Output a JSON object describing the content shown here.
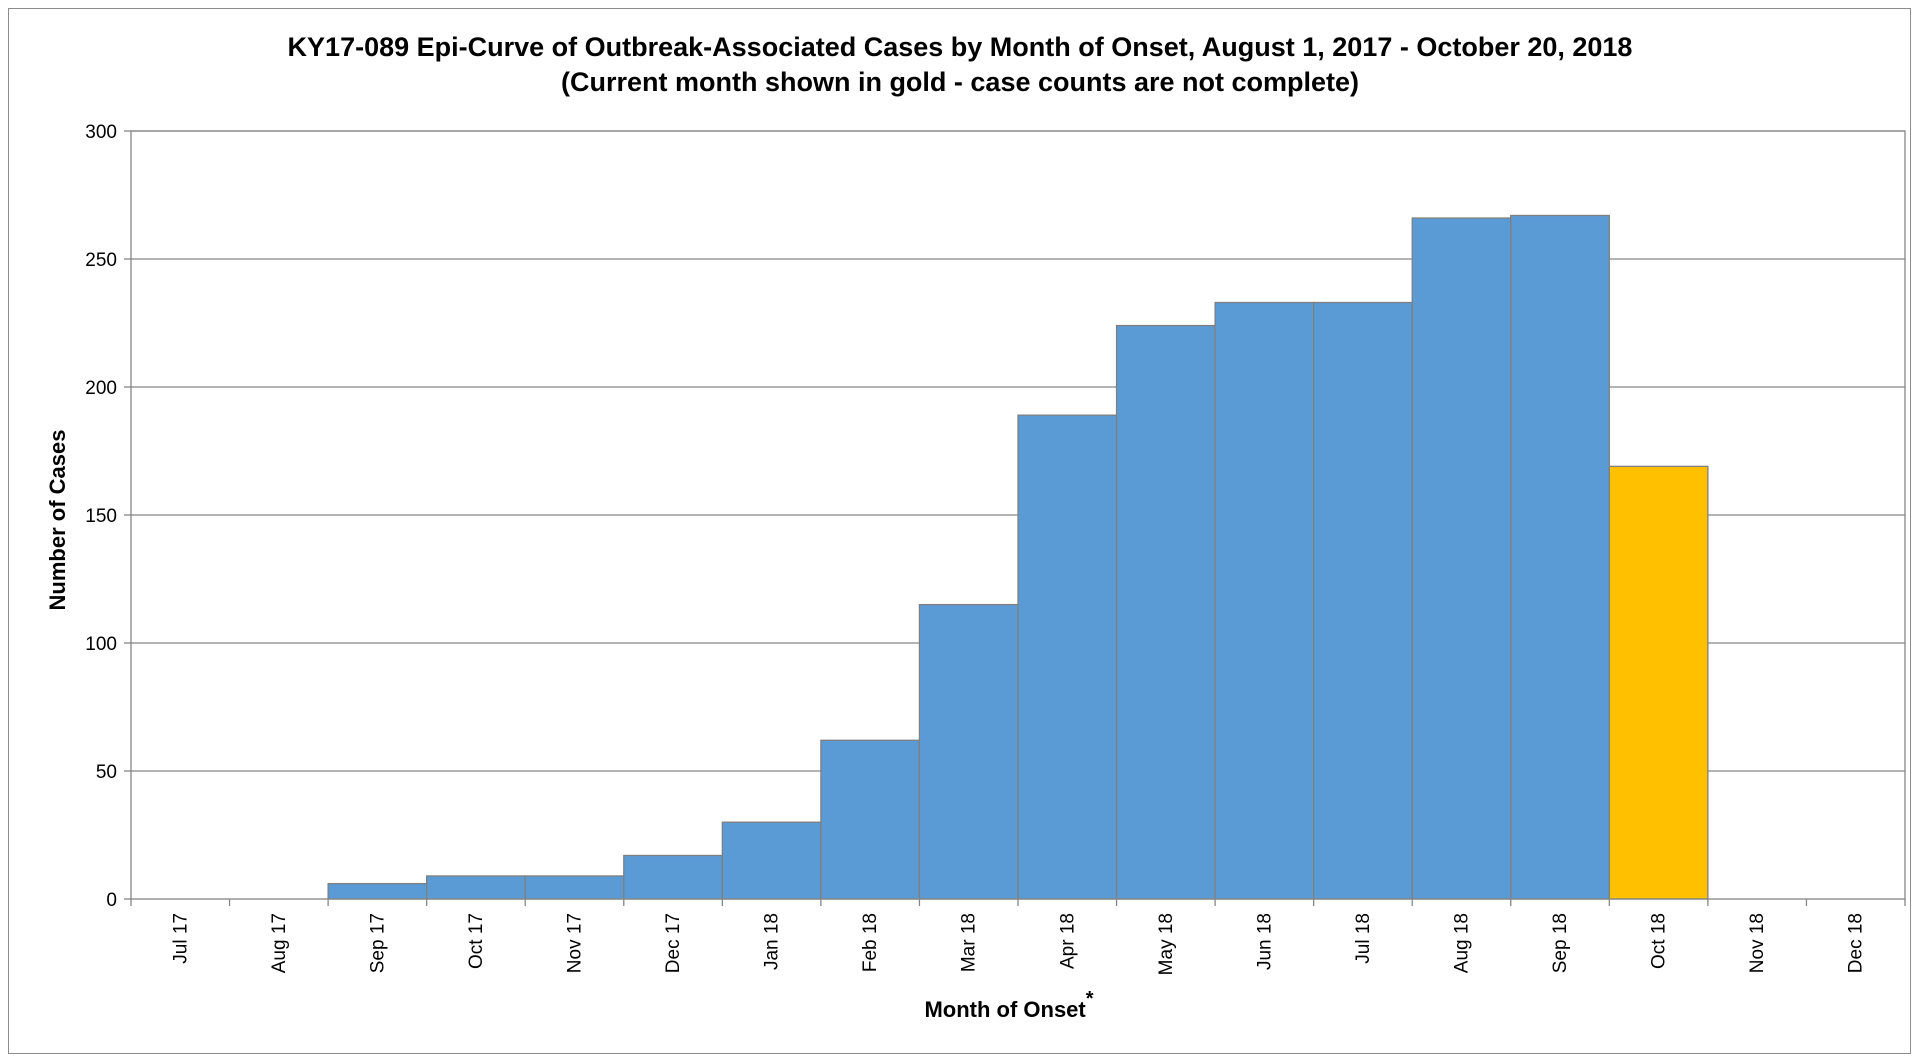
{
  "chart_data": {
    "type": "bar",
    "title": "KY17-089 Epi-Curve of Outbreak-Associated Cases by Month of Onset, August 1, 2017 - October 20, 2018",
    "subtitle": "(Current month shown in gold - case counts are not complete)",
    "xlabel": "Month of Onset",
    "xlabel_marker": "*",
    "ylabel": "Number of Cases",
    "ylim": [
      0,
      300
    ],
    "yticks": [
      0,
      50,
      100,
      150,
      200,
      250,
      300
    ],
    "grid": true,
    "legend": "none",
    "categories": [
      "Jul 17",
      "Aug 17",
      "Sep 17",
      "Oct 17",
      "Nov 17",
      "Dec 17",
      "Jan 18",
      "Feb 18",
      "Mar 18",
      "Apr 18",
      "May 18",
      "Jun 18",
      "Jul 18",
      "Aug 18",
      "Sep 18",
      "Oct 18",
      "Nov 18",
      "Dec 18"
    ],
    "values": [
      0,
      0,
      6,
      9,
      9,
      17,
      30,
      62,
      115,
      189,
      224,
      233,
      233,
      266,
      267,
      169,
      0,
      0
    ],
    "highlight_category": "Oct 18",
    "colors": {
      "bar": "#5b9bd5",
      "highlight": "#ffc000",
      "bar_edge": "#7f7f7f",
      "grid": "#868686"
    }
  }
}
